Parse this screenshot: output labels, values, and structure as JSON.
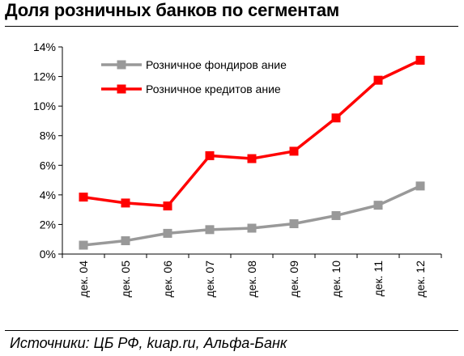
{
  "title": "Доля розничных банков по сегментам",
  "source": "Источники: ЦБ РФ, kuap.ru, Альфа-Банк",
  "chart_data": {
    "type": "line",
    "categories": [
      "дек. 04",
      "дек. 05",
      "дек. 06",
      "дек. 07",
      "дек. 08",
      "дек. 09",
      "дек. 10",
      "дек. 11",
      "дек. 12"
    ],
    "yticks": [
      "0%",
      "2%",
      "4%",
      "6%",
      "8%",
      "10%",
      "12%",
      "14%"
    ],
    "ylim": [
      0,
      14
    ],
    "grid": false,
    "legend_position": "top-center",
    "series": [
      {
        "name": "Розничное фондиров ание",
        "color": "#999999",
        "values": [
          0.6,
          0.9,
          1.4,
          1.65,
          1.75,
          2.05,
          2.6,
          3.3,
          4.6
        ]
      },
      {
        "name": "Розничное кредитов ание",
        "color": "#ff0000",
        "values": [
          3.85,
          3.45,
          3.25,
          6.65,
          6.45,
          6.95,
          9.2,
          11.75,
          13.1
        ]
      }
    ]
  }
}
